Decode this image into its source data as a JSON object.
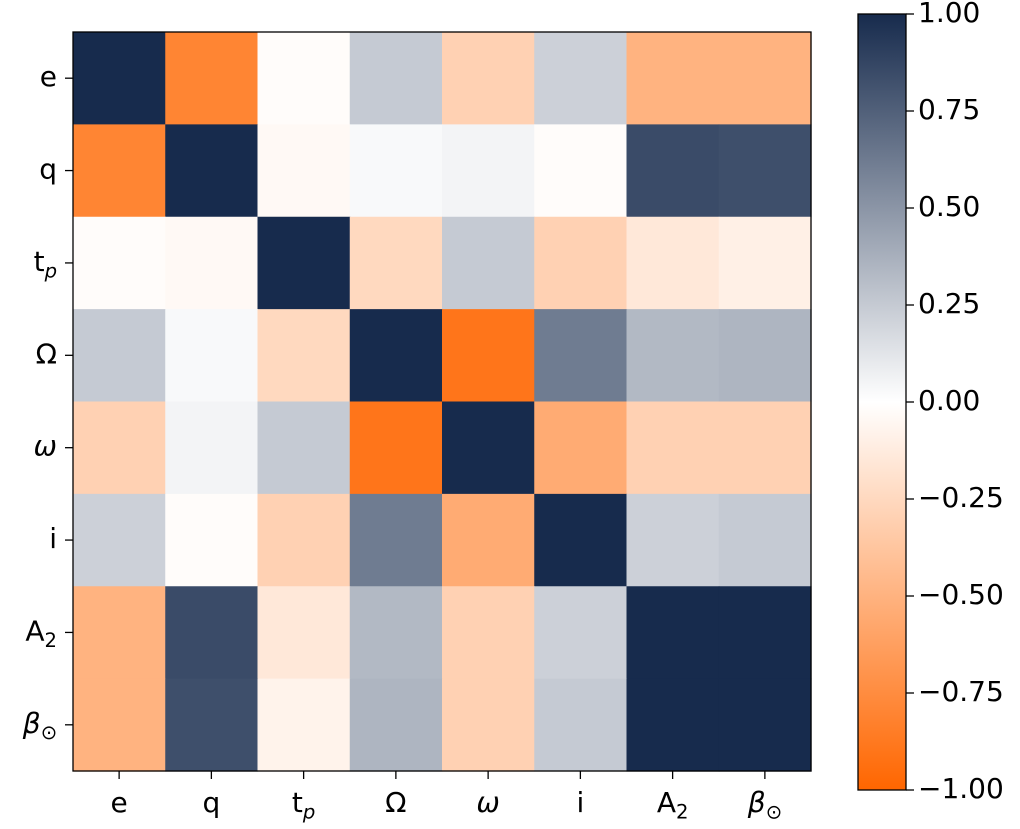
{
  "chart_data": {
    "type": "heatmap",
    "title": "",
    "xlabel": "",
    "ylabel": "",
    "row_labels": [
      {
        "base": "e",
        "sub": ""
      },
      {
        "base": "q",
        "sub": ""
      },
      {
        "base": "t",
        "sub": "p"
      },
      {
        "base": "Ω",
        "sub": ""
      },
      {
        "base": "ω",
        "sub": ""
      },
      {
        "base": "i",
        "sub": ""
      },
      {
        "base": "A",
        "sub": "2"
      },
      {
        "base": "β",
        "sub": "⊙"
      }
    ],
    "col_labels": [
      {
        "base": "e",
        "sub": ""
      },
      {
        "base": "q",
        "sub": ""
      },
      {
        "base": "t",
        "sub": "p"
      },
      {
        "base": "Ω",
        "sub": ""
      },
      {
        "base": "ω",
        "sub": ""
      },
      {
        "base": "i",
        "sub": ""
      },
      {
        "base": "A",
        "sub": "2"
      },
      {
        "base": "β",
        "sub": "⊙"
      }
    ],
    "values": [
      [
        1.0,
        -0.8,
        -0.02,
        0.25,
        -0.3,
        0.22,
        -0.5,
        -0.5
      ],
      [
        -0.8,
        1.0,
        -0.04,
        0.03,
        0.05,
        -0.02,
        0.85,
        0.83
      ],
      [
        -0.02,
        -0.04,
        1.0,
        -0.25,
        0.25,
        -0.3,
        -0.15,
        -0.1
      ],
      [
        0.25,
        0.03,
        -0.25,
        1.0,
        -0.9,
        0.62,
        0.33,
        0.35
      ],
      [
        -0.3,
        0.05,
        0.25,
        -0.9,
        1.0,
        -0.55,
        -0.3,
        -0.3
      ],
      [
        0.22,
        -0.02,
        -0.3,
        0.62,
        -0.55,
        1.0,
        0.22,
        0.25
      ],
      [
        -0.5,
        0.85,
        -0.15,
        0.33,
        -0.3,
        0.22,
        1.0,
        1.0
      ],
      [
        -0.5,
        0.83,
        -0.08,
        0.35,
        -0.3,
        0.25,
        1.0,
        1.0
      ]
    ],
    "colorbar": {
      "range": [
        -1.0,
        1.0
      ],
      "ticks": [
        1.0,
        0.75,
        0.5,
        0.25,
        0.0,
        -0.25,
        -0.5,
        -0.75,
        -1.0
      ],
      "tick_labels": [
        "1.00",
        "0.75",
        "0.50",
        "0.25",
        "0.00",
        "−0.25",
        "−0.50",
        "−0.75",
        "−1.00"
      ],
      "colors": {
        "low": "#ff6600",
        "mid": "#ffffff",
        "high": "#172b4d"
      }
    },
    "grid": false
  }
}
